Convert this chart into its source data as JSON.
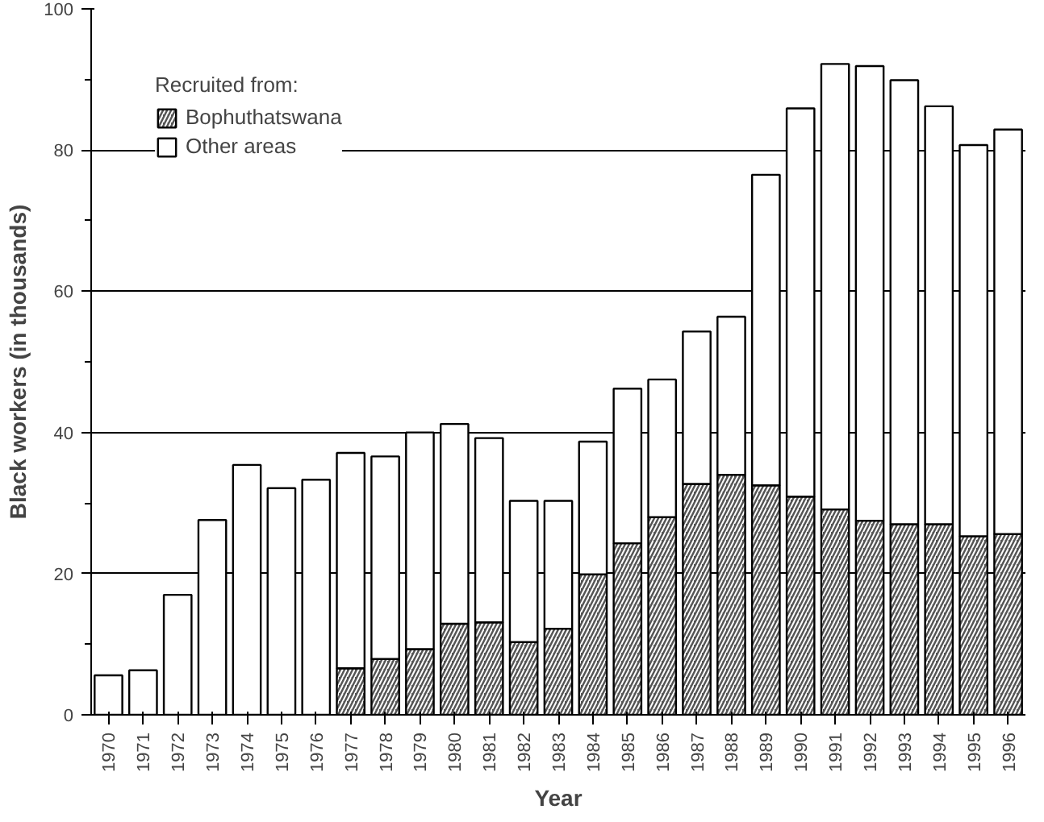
{
  "chart_data": {
    "type": "bar",
    "stacked": true,
    "xlabel": "Year",
    "ylabel": "Black workers (in thousands)",
    "legend_title": "Recruited from:",
    "legend": "top left",
    "grid": "y",
    "categories": [
      "1970",
      "1971",
      "1972",
      "1973",
      "1974",
      "1975",
      "1976",
      "1977",
      "1978",
      "1979",
      "1980",
      "1981",
      "1982",
      "1983",
      "1984",
      "1985",
      "1986",
      "1987",
      "1988",
      "1989",
      "1990",
      "1991",
      "1992",
      "1993",
      "1994",
      "1995",
      "1996"
    ],
    "ylim": [
      0,
      100
    ],
    "yticks": [
      0,
      20,
      40,
      60,
      80,
      100
    ],
    "series": [
      {
        "name": "Bophuthatswana",
        "color": "#555555",
        "values": [
          0,
          0,
          0,
          0,
          0,
          0,
          0,
          6.6,
          7.9,
          9.3,
          12.9,
          13.1,
          10.3,
          12.2,
          19.9,
          24.3,
          28.0,
          32.7,
          34.0,
          32.5,
          30.9,
          29.1,
          27.5,
          27.0,
          27.0,
          25.3,
          25.6
        ]
      },
      {
        "name": "Other areas",
        "color": "#ffffff",
        "values": [
          5.6,
          6.3,
          17.0,
          27.6,
          35.4,
          32.1,
          33.3,
          30.5,
          28.7,
          30.7,
          28.3,
          26.1,
          20.0,
          18.1,
          18.8,
          21.9,
          19.5,
          21.6,
          22.4,
          44.0,
          55.0,
          63.1,
          64.4,
          62.9,
          59.2,
          55.4,
          57.3
        ]
      }
    ]
  }
}
